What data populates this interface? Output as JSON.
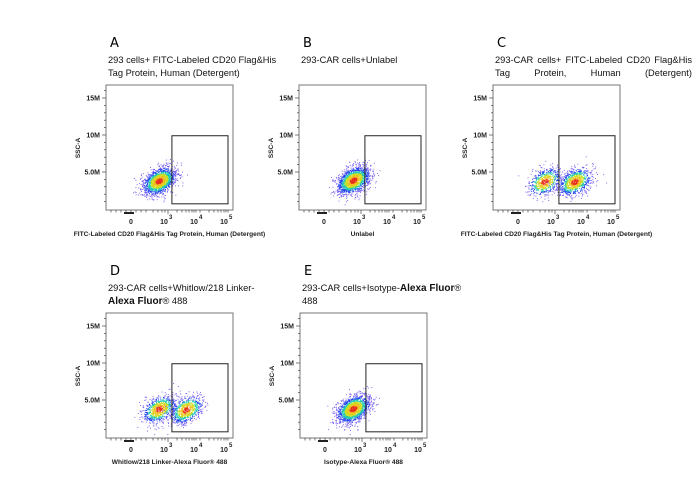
{
  "chart_data": [
    {
      "type": "scatter",
      "panel": "A",
      "title": "293 cells+ FITC-Labeled CD20 Flag&His Tag Protein, Human (Detergent)",
      "title_segments": [
        {
          "text": "293 cells+ FITC-Labeled CD20 Flag&His Tag Protein, Human (Detergent)",
          "bold": false
        }
      ],
      "xlabel": "FITC-Labeled CD20 Flag&His Tag Protein, Human (Detergent)",
      "ylabel": "SSC-A",
      "populations": [
        {
          "center_x": 500,
          "center_y": 3800000,
          "fraction": 1.0
        }
      ],
      "gate": {
        "x": [
          1350,
          100000
        ],
        "y": [
          700000,
          9900000
        ]
      }
    },
    {
      "type": "scatter",
      "panel": "B",
      "title": "293-CAR cells+Unlabel",
      "title_segments": [
        {
          "text": "293-CAR cells+Unlabel",
          "bold": false
        }
      ],
      "xlabel": "Unlabel",
      "ylabel": "SSC-A",
      "populations": [
        {
          "center_x": 550,
          "center_y": 3900000,
          "fraction": 1.0
        }
      ],
      "gate": {
        "x": [
          1350,
          100000
        ],
        "y": [
          700000,
          9900000
        ]
      }
    },
    {
      "type": "scatter",
      "panel": "C",
      "title": "293-CAR cells+ FITC-Labeled CD20 Flag&His Tag Protein, Human (Detergent)",
      "title_segments": [
        {
          "text": "293-CAR cells+ FITC-Labeled CD20 Flag&His Tag Protein, Human (Detergent)",
          "bold": false
        }
      ],
      "xlabel": "FITC-Labeled CD20 Flag&His Tag Protein, Human (Detergent)",
      "ylabel": "SSC-A",
      "populations": [
        {
          "center_x": 450,
          "center_y": 3700000,
          "fraction": 0.4
        },
        {
          "center_x": 4500,
          "center_y": 3700000,
          "fraction": 0.6
        }
      ],
      "gate": {
        "x": [
          1350,
          100000
        ],
        "y": [
          700000,
          9900000
        ]
      }
    },
    {
      "type": "scatter",
      "panel": "D",
      "title": "293-CAR cells+Whitlow/218 Linker-Alexa Fluor® 488",
      "title_segments": [
        {
          "text": "293-CAR  cells+Whitlow/218 Linker-",
          "bold": false
        },
        {
          "text": "Alexa Fluor",
          "bold": true
        },
        {
          "text": "® 488",
          "bold": false
        }
      ],
      "xlabel": "Whitlow/218 Linker-Alexa Fluor® 488",
      "ylabel": "SSC-A",
      "populations": [
        {
          "center_x": 500,
          "center_y": 3800000,
          "fraction": 0.5
        },
        {
          "center_x": 4000,
          "center_y": 3700000,
          "fraction": 0.5
        }
      ],
      "gate": {
        "x": [
          1350,
          100000
        ],
        "y": [
          700000,
          9900000
        ]
      }
    },
    {
      "type": "scatter",
      "panel": "E",
      "title": "293-CAR cells+Isotype-Alexa Fluor® 488",
      "title_segments": [
        {
          "text": "293-CAR  cells+Isotype-",
          "bold": false
        },
        {
          "text": "Alexa Fluor",
          "bold": true
        },
        {
          "text": "® 488",
          "bold": false
        }
      ],
      "xlabel": "Isotype-Alexa Fluor® 488",
      "ylabel": "SSC-A",
      "populations": [
        {
          "center_x": 500,
          "center_y": 3800000,
          "fraction": 1.0
        }
      ],
      "gate": {
        "x": [
          1350,
          100000
        ],
        "y": [
          700000,
          9900000
        ]
      }
    }
  ],
  "axes": {
    "y_ticks": [
      {
        "value": 15000000,
        "label": "15M"
      },
      {
        "value": 10000000,
        "label": "10M"
      },
      {
        "value": 5000000,
        "label": "5.0M"
      }
    ],
    "y_range": [
      0,
      16800000
    ],
    "x_scale": "biexponential",
    "x_ticks": [
      {
        "value": 0,
        "label": "0"
      },
      {
        "value": 1000,
        "base": "10",
        "exp": "3"
      },
      {
        "value": 10000,
        "base": "10",
        "exp": "4"
      },
      {
        "value": 100000,
        "base": "10",
        "exp": "5"
      }
    ],
    "grid": false
  },
  "colors": {
    "density_high": "#e8301c",
    "density_mid": "#c8e020",
    "density_low": "#20c8b0",
    "density_sparse": "#2040f0",
    "gate": "#222222"
  }
}
